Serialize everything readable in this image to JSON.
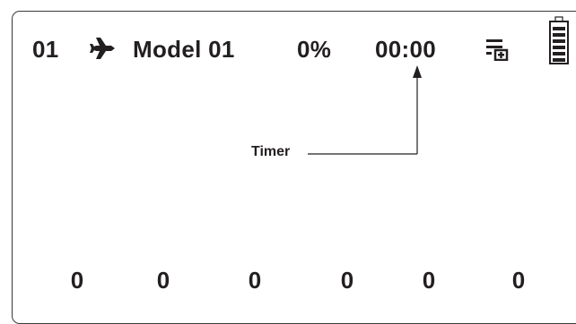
{
  "status_bar": {
    "model_number": "01",
    "model_name": "Model 01",
    "throttle_percent": "0%",
    "timer": "00:00",
    "model_type_icon": "airplane-icon",
    "menu_icon": "list-menu-icon",
    "battery_icon": "battery-icon",
    "battery_level": 1.0
  },
  "annotation": {
    "label": "Timer"
  },
  "channels": [
    {
      "value": "0"
    },
    {
      "value": "0"
    },
    {
      "value": "0"
    },
    {
      "value": "0"
    },
    {
      "value": "0"
    },
    {
      "value": "0"
    }
  ]
}
